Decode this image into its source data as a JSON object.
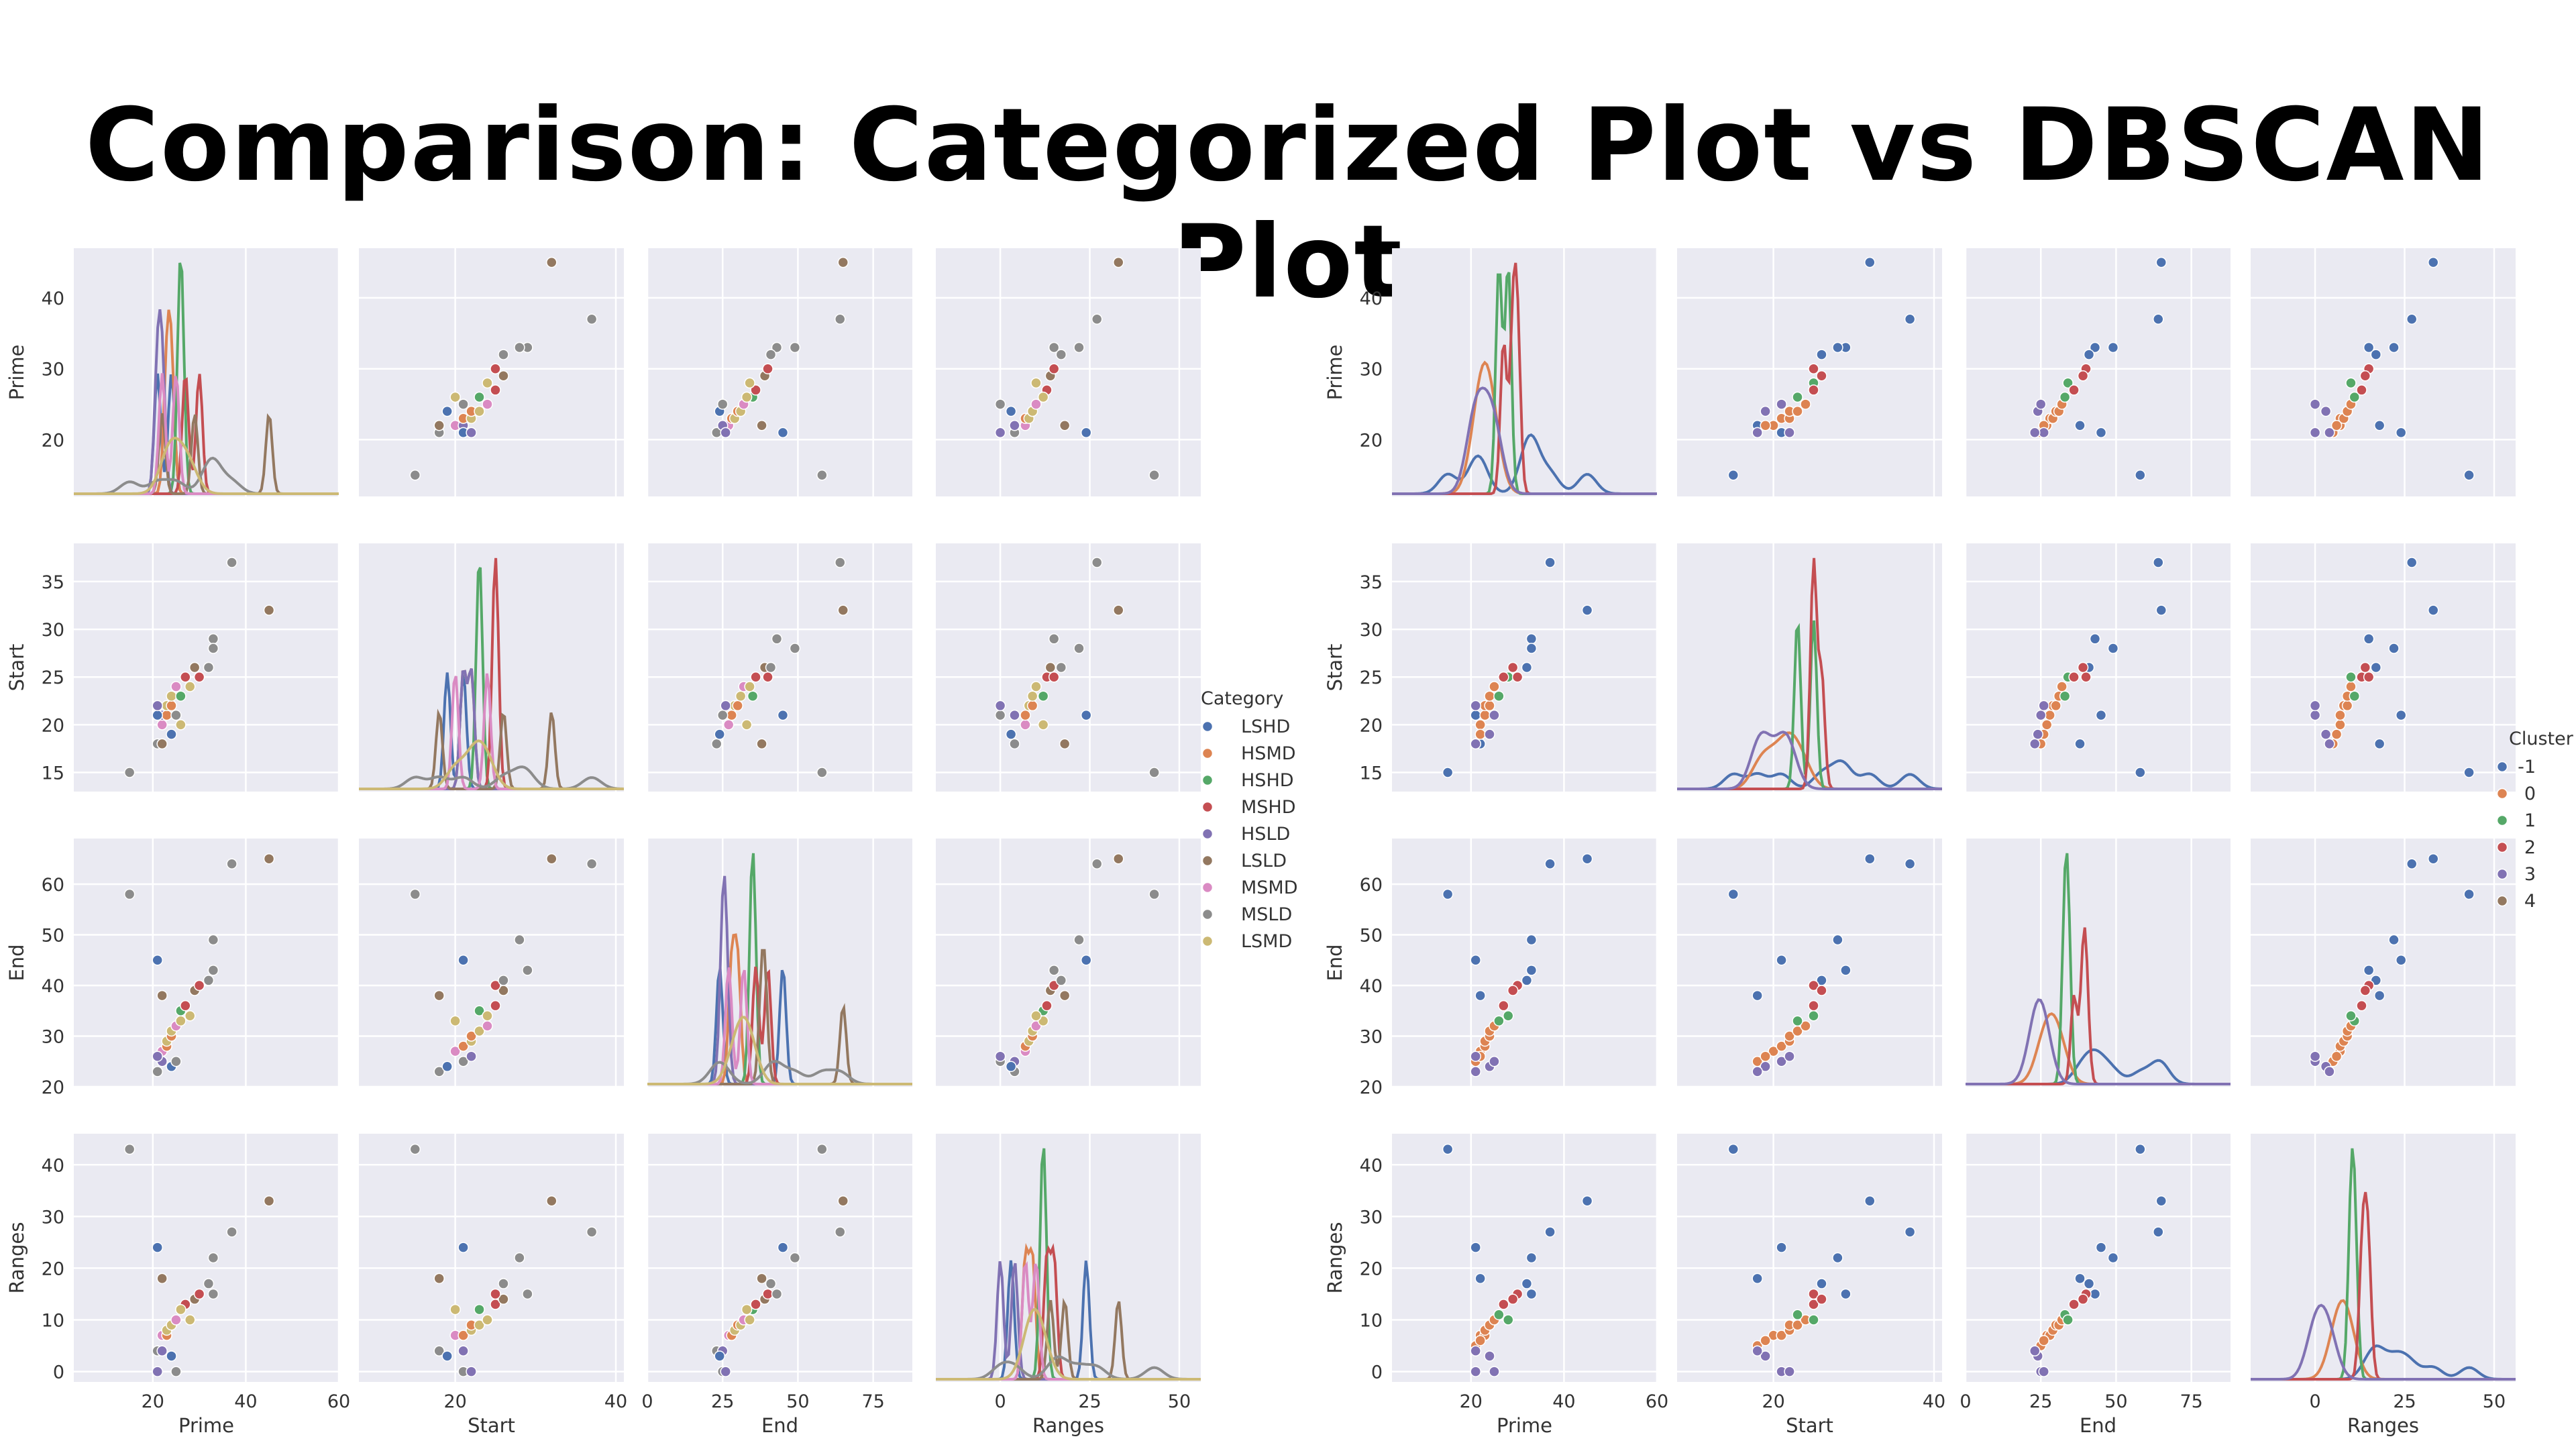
{
  "title": "Comparison: Categorized Plot vs DBSCAN Plot",
  "colors": {
    "background": "#eaeaf2",
    "grid": "#ffffff",
    "palette": [
      "#4c72b0",
      "#dd8452",
      "#55a868",
      "#c44e52",
      "#8172b3",
      "#937860",
      "#da8bc3",
      "#8c8c8c",
      "#ccb974"
    ]
  },
  "variables": [
    "Prime",
    "Start",
    "End",
    "Ranges"
  ],
  "axes": {
    "Prime": {
      "label": "Prime",
      "lim": [
        3,
        60
      ],
      "ticks": [
        20,
        40,
        60
      ],
      "ylim": [
        12,
        47
      ],
      "yticks": [
        20,
        30,
        40
      ]
    },
    "Start": {
      "label": "Start",
      "lim": [
        8,
        41
      ],
      "ticks": [
        20,
        40
      ],
      "ylim": [
        13,
        39
      ],
      "yticks": [
        15,
        20,
        25,
        30,
        35
      ]
    },
    "End": {
      "label": "End",
      "lim": [
        0,
        88
      ],
      "ticks": [
        0,
        25,
        50,
        75
      ],
      "ylim": [
        20,
        69
      ],
      "yticks": [
        20,
        30,
        40,
        50,
        60
      ]
    },
    "Ranges": {
      "label": "Ranges",
      "lim": [
        -18,
        56
      ],
      "ticks": [
        0,
        25,
        50
      ],
      "ylim": [
        -2,
        46
      ],
      "yticks": [
        0,
        10,
        20,
        30,
        40
      ]
    }
  },
  "chart_data": [
    {
      "type": "scatter",
      "title": "",
      "subtype": "pairplot",
      "hue": "Category",
      "legend": {
        "title": "Category",
        "position": "right",
        "entries": [
          "LSHD",
          "HSMD",
          "HSHD",
          "MSHD",
          "HSLD",
          "LSLD",
          "MSMD",
          "MSLD",
          "LSMD"
        ]
      },
      "variables": [
        "Prime",
        "Start",
        "End",
        "Ranges"
      ],
      "points": [
        {
          "Prime": 15,
          "Start": 15,
          "End": 58,
          "Ranges": 43,
          "hue": "MSLD"
        },
        {
          "Prime": 21,
          "Start": 18,
          "End": 23,
          "Ranges": 4,
          "hue": "MSLD"
        },
        {
          "Prime": 22,
          "Start": 20,
          "End": 27,
          "Ranges": 7,
          "hue": "MSMD"
        },
        {
          "Prime": 22,
          "Start": 21,
          "End": 25,
          "Ranges": 4,
          "hue": "HSLD"
        },
        {
          "Prime": 23,
          "Start": 21,
          "End": 28,
          "Ranges": 7,
          "hue": "HSMD"
        },
        {
          "Prime": 23,
          "Start": 22,
          "End": 29,
          "Ranges": 8,
          "hue": "LSMD"
        },
        {
          "Prime": 24,
          "Start": 22,
          "End": 30,
          "Ranges": 9,
          "hue": "HSMD"
        },
        {
          "Prime": 24,
          "Start": 23,
          "End": 31,
          "Ranges": 9,
          "hue": "LSMD"
        },
        {
          "Prime": 25,
          "Start": 24,
          "End": 32,
          "Ranges": 10,
          "hue": "MSMD"
        },
        {
          "Prime": 21,
          "Start": 21,
          "End": 45,
          "Ranges": 24,
          "hue": "LSHD"
        },
        {
          "Prime": 26,
          "Start": 23,
          "End": 35,
          "Ranges": 12,
          "hue": "HSHD"
        },
        {
          "Prime": 27,
          "Start": 25,
          "End": 36,
          "Ranges": 13,
          "hue": "MSHD"
        },
        {
          "Prime": 29,
          "Start": 26,
          "End": 39,
          "Ranges": 14,
          "hue": "LSLD"
        },
        {
          "Prime": 30,
          "Start": 25,
          "End": 40,
          "Ranges": 15,
          "hue": "MSHD"
        },
        {
          "Prime": 33,
          "Start": 29,
          "End": 43,
          "Ranges": 15,
          "hue": "MSLD"
        },
        {
          "Prime": 32,
          "Start": 26,
          "End": 41,
          "Ranges": 17,
          "hue": "MSLD"
        },
        {
          "Prime": 33,
          "Start": 28,
          "End": 49,
          "Ranges": 22,
          "hue": "MSLD"
        },
        {
          "Prime": 37,
          "Start": 37,
          "End": 64,
          "Ranges": 27,
          "hue": "MSLD"
        },
        {
          "Prime": 45,
          "Start": 32,
          "End": 65,
          "Ranges": 33,
          "hue": "LSLD"
        },
        {
          "Prime": 22,
          "Start": 18,
          "End": 38,
          "Ranges": 18,
          "hue": "LSLD"
        },
        {
          "Prime": 24,
          "Start": 19,
          "End": 24,
          "Ranges": 3,
          "hue": "LSHD"
        },
        {
          "Prime": 25,
          "Start": 21,
          "End": 25,
          "Ranges": 0,
          "hue": "MSLD"
        },
        {
          "Prime": 21,
          "Start": 22,
          "End": 26,
          "Ranges": 0,
          "hue": "HSLD"
        },
        {
          "Prime": 26,
          "Start": 20,
          "End": 33,
          "Ranges": 12,
          "hue": "LSMD"
        },
        {
          "Prime": 28,
          "Start": 24,
          "End": 34,
          "Ranges": 10,
          "hue": "LSMD"
        }
      ]
    },
    {
      "type": "scatter",
      "title": "",
      "subtype": "pairplot",
      "hue": "Cluster",
      "legend": {
        "title": "Cluster",
        "position": "right",
        "entries": [
          "-1",
          "0",
          "1",
          "2",
          "3",
          "4"
        ]
      },
      "variables": [
        "Prime",
        "Start",
        "End",
        "Ranges"
      ],
      "points": [
        {
          "Prime": 15,
          "Start": 15,
          "End": 58,
          "Ranges": 43,
          "hue": "-1"
        },
        {
          "Prime": 21,
          "Start": 21,
          "End": 45,
          "Ranges": 24,
          "hue": "-1"
        },
        {
          "Prime": 33,
          "Start": 29,
          "End": 43,
          "Ranges": 15,
          "hue": "-1"
        },
        {
          "Prime": 32,
          "Start": 26,
          "End": 41,
          "Ranges": 17,
          "hue": "-1"
        },
        {
          "Prime": 33,
          "Start": 28,
          "End": 49,
          "Ranges": 22,
          "hue": "-1"
        },
        {
          "Prime": 37,
          "Start": 37,
          "End": 64,
          "Ranges": 27,
          "hue": "-1"
        },
        {
          "Prime": 45,
          "Start": 32,
          "End": 65,
          "Ranges": 33,
          "hue": "-1"
        },
        {
          "Prime": 22,
          "Start": 18,
          "End": 38,
          "Ranges": 18,
          "hue": "-1"
        },
        {
          "Prime": 22,
          "Start": 20,
          "End": 27,
          "Ranges": 7,
          "hue": "0"
        },
        {
          "Prime": 23,
          "Start": 21,
          "End": 28,
          "Ranges": 7,
          "hue": "0"
        },
        {
          "Prime": 23,
          "Start": 22,
          "End": 29,
          "Ranges": 8,
          "hue": "0"
        },
        {
          "Prime": 24,
          "Start": 22,
          "End": 30,
          "Ranges": 9,
          "hue": "0"
        },
        {
          "Prime": 24,
          "Start": 23,
          "End": 31,
          "Ranges": 9,
          "hue": "0"
        },
        {
          "Prime": 25,
          "Start": 24,
          "End": 32,
          "Ranges": 10,
          "hue": "0"
        },
        {
          "Prime": 21,
          "Start": 18,
          "End": 25,
          "Ranges": 5,
          "hue": "0"
        },
        {
          "Prime": 22,
          "Start": 19,
          "End": 26,
          "Ranges": 6,
          "hue": "0"
        },
        {
          "Prime": 26,
          "Start": 23,
          "End": 33,
          "Ranges": 11,
          "hue": "1"
        },
        {
          "Prime": 28,
          "Start": 25,
          "End": 34,
          "Ranges": 10,
          "hue": "1"
        },
        {
          "Prime": 27,
          "Start": 25,
          "End": 36,
          "Ranges": 13,
          "hue": "2"
        },
        {
          "Prime": 30,
          "Start": 25,
          "End": 40,
          "Ranges": 15,
          "hue": "2"
        },
        {
          "Prime": 29,
          "Start": 26,
          "End": 39,
          "Ranges": 14,
          "hue": "2"
        },
        {
          "Prime": 24,
          "Start": 19,
          "End": 24,
          "Ranges": 3,
          "hue": "3"
        },
        {
          "Prime": 25,
          "Start": 21,
          "End": 25,
          "Ranges": 0,
          "hue": "3"
        },
        {
          "Prime": 21,
          "Start": 22,
          "End": 26,
          "Ranges": 0,
          "hue": "3"
        },
        {
          "Prime": 21,
          "Start": 18,
          "End": 23,
          "Ranges": 4,
          "hue": "3"
        }
      ]
    }
  ]
}
